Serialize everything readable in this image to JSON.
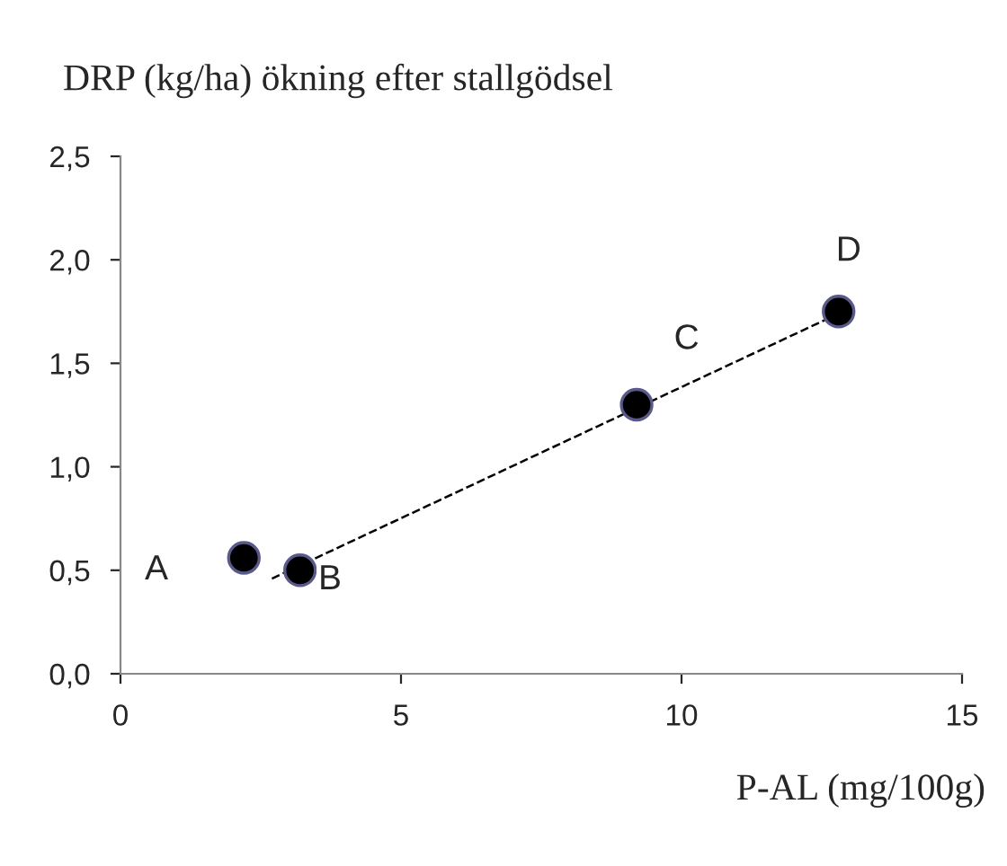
{
  "chart_data": {
    "type": "scatter",
    "title": "DRP (kg/ha) ökning efter stallgödsel",
    "xlabel": "P-AL (mg/100g)",
    "xlim": [
      0,
      15
    ],
    "xticks": [
      0,
      5,
      10,
      15
    ],
    "ylim": [
      0,
      2.5
    ],
    "yticks": [
      {
        "value": 0,
        "label": "0,0"
      },
      {
        "value": 0.5,
        "label": "0,5"
      },
      {
        "value": 1,
        "label": "1,0"
      },
      {
        "value": 1.5,
        "label": "1,5"
      },
      {
        "value": 2,
        "label": "2,0"
      },
      {
        "value": 2.5,
        "label": "2,5"
      }
    ],
    "grid": false,
    "legend": false,
    "marker": "circle",
    "series": [
      {
        "type": "line",
        "color": "#000000",
        "line_style": "dashed",
        "marker": "none",
        "x": [
          2.7,
          12.8
        ],
        "values": [
          0.46,
          1.74
        ]
      },
      {
        "color": "#000000",
        "x": [
          2.2,
          3.2,
          9.2,
          12.8
        ],
        "values": [
          0.56,
          0.5,
          1.3,
          1.75
        ]
      }
    ],
    "annotations": [
      {
        "text": "A",
        "x": 2.2,
        "y": 0.56
      },
      {
        "text": "B",
        "x": 3.2,
        "y": 0.5
      },
      {
        "text": "C",
        "x": 9.2,
        "y": 1.3
      },
      {
        "text": "D",
        "x": 12.8,
        "y": 1.75
      }
    ]
  }
}
